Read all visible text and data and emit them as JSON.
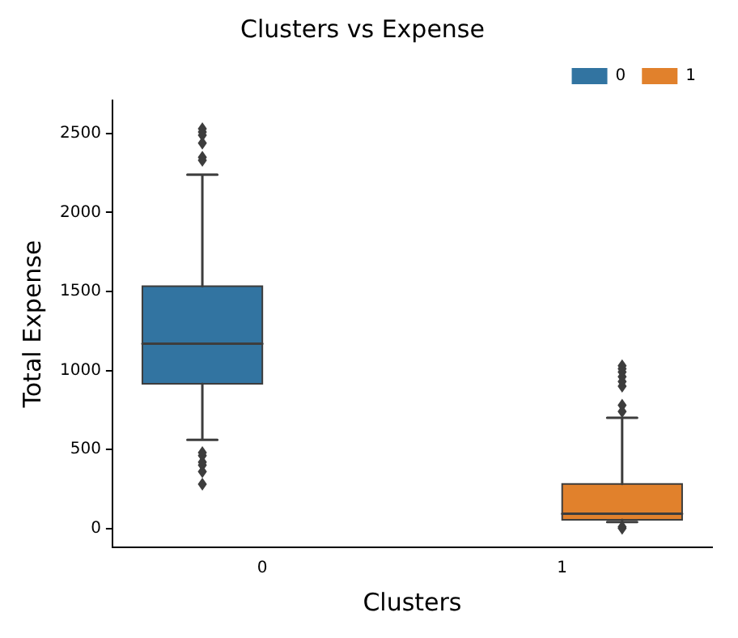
{
  "chart_data": {
    "type": "box",
    "title": "Clusters vs Expense",
    "xlabel": "Clusters",
    "ylabel": "Total Expense",
    "categories": [
      "0",
      "1"
    ],
    "series": [
      {
        "name": "0",
        "color": "#3274a1",
        "boxes": [
          {
            "low": 560,
            "q1": 915,
            "median": 1170,
            "q3": 1534,
            "high": 2240,
            "outliers": [
              2530,
              2510,
              2490,
              2440,
              2350,
              2330,
              480,
              460,
              420,
              400,
              360,
              280
            ]
          },
          null
        ]
      },
      {
        "name": "1",
        "color": "#e1812c",
        "boxes": [
          null,
          {
            "low": 40,
            "q1": 54,
            "median": 93,
            "q3": 281,
            "high": 700,
            "outliers": [
              1030,
              1010,
              990,
              960,
              930,
              900,
              780,
              740,
              10,
              0
            ]
          }
        ]
      }
    ],
    "ylim": [
      -120,
      2710
    ],
    "yticks": [
      0,
      500,
      1000,
      1500,
      2000,
      2500
    ],
    "grid": false,
    "legend": "top right",
    "marker": "diamond"
  }
}
